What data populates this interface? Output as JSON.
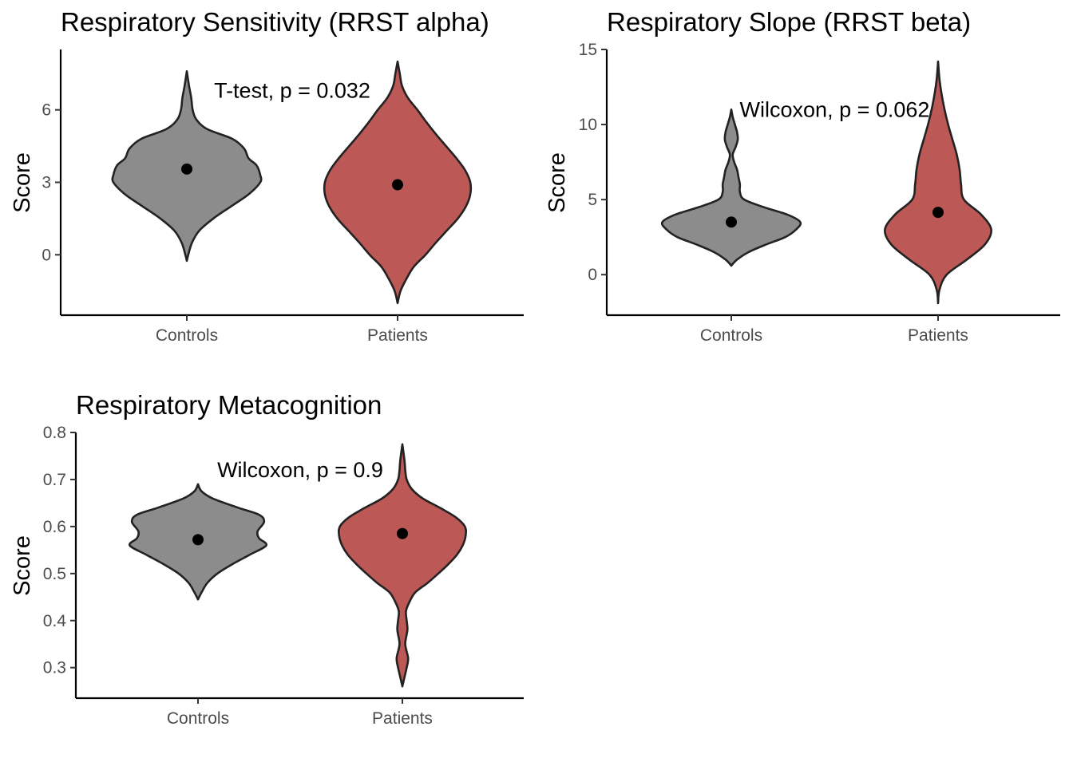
{
  "chart_data": [
    {
      "type": "violin",
      "title": "Respiratory Sensitivity (RRST alpha)",
      "ylabel": "Score",
      "categories": [
        "Controls",
        "Patients"
      ],
      "colors": [
        "#8c8c8c",
        "#bc5855"
      ],
      "yticks": [
        0,
        3,
        6
      ],
      "ylim": [
        -2.5,
        8.5
      ],
      "annotation": "T-test, p = 0.032",
      "annotation_anchor": [
        1.15,
        6.5
      ],
      "groups": [
        {
          "name": "Controls",
          "mean": 3.55,
          "density": [
            [
              -0.25,
              0.0
            ],
            [
              0.0,
              0.02
            ],
            [
              0.5,
              0.07
            ],
            [
              1.0,
              0.17
            ],
            [
              1.5,
              0.36
            ],
            [
              2.0,
              0.6
            ],
            [
              2.5,
              0.84
            ],
            [
              3.0,
              1.0
            ],
            [
              3.3,
              1.0
            ],
            [
              3.7,
              0.95
            ],
            [
              4.0,
              0.84
            ],
            [
              4.4,
              0.78
            ],
            [
              4.8,
              0.62
            ],
            [
              5.2,
              0.28
            ],
            [
              5.6,
              0.13
            ],
            [
              6.0,
              0.08
            ],
            [
              6.5,
              0.06
            ],
            [
              7.0,
              0.03
            ],
            [
              7.6,
              0.0
            ]
          ]
        },
        {
          "name": "Patients",
          "mean": 2.9,
          "density": [
            [
              -2.0,
              0.0
            ],
            [
              -1.5,
              0.04
            ],
            [
              -1.0,
              0.12
            ],
            [
              -0.5,
              0.22
            ],
            [
              0.0,
              0.38
            ],
            [
              0.5,
              0.52
            ],
            [
              1.0,
              0.67
            ],
            [
              1.5,
              0.82
            ],
            [
              2.0,
              0.93
            ],
            [
              2.5,
              0.99
            ],
            [
              3.0,
              0.99
            ],
            [
              3.5,
              0.92
            ],
            [
              4.0,
              0.8
            ],
            [
              4.5,
              0.66
            ],
            [
              5.0,
              0.52
            ],
            [
              5.5,
              0.39
            ],
            [
              6.0,
              0.27
            ],
            [
              6.5,
              0.14
            ],
            [
              7.0,
              0.06
            ],
            [
              7.5,
              0.03
            ],
            [
              8.0,
              0.0
            ]
          ]
        }
      ]
    },
    {
      "type": "violin",
      "title": "Respiratory Slope (RRST beta)",
      "ylabel": "Score",
      "categories": [
        "Controls",
        "Patients"
      ],
      "colors": [
        "#8c8c8c",
        "#bc5855"
      ],
      "yticks": [
        0,
        5,
        10,
        15
      ],
      "ylim": [
        -2.7,
        15
      ],
      "annotation": "Wilcoxon, p = 0.062",
      "annotation_anchor": [
        1.1,
        10.5
      ],
      "groups": [
        {
          "name": "Controls",
          "mean": 3.5,
          "density": [
            [
              0.6,
              0.0
            ],
            [
              1.0,
              0.08
            ],
            [
              1.5,
              0.24
            ],
            [
              2.0,
              0.48
            ],
            [
              2.5,
              0.75
            ],
            [
              3.0,
              0.9
            ],
            [
              3.5,
              0.96
            ],
            [
              4.0,
              0.78
            ],
            [
              4.5,
              0.45
            ],
            [
              5.0,
              0.18
            ],
            [
              5.5,
              0.12
            ],
            [
              6.0,
              0.12
            ],
            [
              6.5,
              0.1
            ],
            [
              7.0,
              0.08
            ],
            [
              7.5,
              0.04
            ],
            [
              8.0,
              0.02
            ],
            [
              8.5,
              0.06
            ],
            [
              9.0,
              0.09
            ],
            [
              9.5,
              0.08
            ],
            [
              10.0,
              0.05
            ],
            [
              10.5,
              0.02
            ],
            [
              11.0,
              0.0
            ]
          ]
        },
        {
          "name": "Patients",
          "mean": 4.15,
          "density": [
            [
              -1.9,
              0.0
            ],
            [
              -1.0,
              0.02
            ],
            [
              0.0,
              0.12
            ],
            [
              1.0,
              0.4
            ],
            [
              2.0,
              0.65
            ],
            [
              3.0,
              0.74
            ],
            [
              4.0,
              0.6
            ],
            [
              5.0,
              0.36
            ],
            [
              6.0,
              0.32
            ],
            [
              7.0,
              0.3
            ],
            [
              8.0,
              0.26
            ],
            [
              9.0,
              0.2
            ],
            [
              10.0,
              0.14
            ],
            [
              11.0,
              0.09
            ],
            [
              12.0,
              0.05
            ],
            [
              13.0,
              0.02
            ],
            [
              14.2,
              0.0
            ]
          ]
        }
      ]
    },
    {
      "type": "violin",
      "title": "Respiratory Metacognition",
      "ylabel": "Score",
      "categories": [
        "Controls",
        "Patients"
      ],
      "colors": [
        "#8c8c8c",
        "#bc5855"
      ],
      "yticks": [
        0.3,
        0.4,
        0.5,
        0.6,
        0.7,
        0.8
      ],
      "ylim": [
        0.235,
        0.8
      ],
      "annotation": "Wilcoxon, p = 0.9",
      "annotation_anchor": [
        1.15,
        0.705
      ],
      "groups": [
        {
          "name": "Controls",
          "mean": 0.572,
          "density": [
            [
              0.445,
              0.0
            ],
            [
              0.46,
              0.05
            ],
            [
              0.48,
              0.13
            ],
            [
              0.5,
              0.27
            ],
            [
              0.52,
              0.48
            ],
            [
              0.54,
              0.72
            ],
            [
              0.56,
              0.95
            ],
            [
              0.575,
              0.85
            ],
            [
              0.59,
              0.83
            ],
            [
              0.61,
              0.92
            ],
            [
              0.625,
              0.85
            ],
            [
              0.64,
              0.56
            ],
            [
              0.66,
              0.2
            ],
            [
              0.675,
              0.05
            ],
            [
              0.69,
              0.0
            ]
          ]
        },
        {
          "name": "Patients",
          "mean": 0.585,
          "density": [
            [
              0.26,
              0.0
            ],
            [
              0.28,
              0.03
            ],
            [
              0.3,
              0.06
            ],
            [
              0.32,
              0.08
            ],
            [
              0.35,
              0.04
            ],
            [
              0.38,
              0.07
            ],
            [
              0.4,
              0.06
            ],
            [
              0.42,
              0.05
            ],
            [
              0.44,
              0.1
            ],
            [
              0.46,
              0.18
            ],
            [
              0.48,
              0.35
            ],
            [
              0.5,
              0.5
            ],
            [
              0.52,
              0.64
            ],
            [
              0.54,
              0.76
            ],
            [
              0.56,
              0.84
            ],
            [
              0.58,
              0.88
            ],
            [
              0.6,
              0.87
            ],
            [
              0.62,
              0.74
            ],
            [
              0.64,
              0.52
            ],
            [
              0.66,
              0.28
            ],
            [
              0.68,
              0.13
            ],
            [
              0.7,
              0.06
            ],
            [
              0.72,
              0.04
            ],
            [
              0.74,
              0.03
            ],
            [
              0.775,
              0.0
            ]
          ]
        }
      ]
    }
  ]
}
